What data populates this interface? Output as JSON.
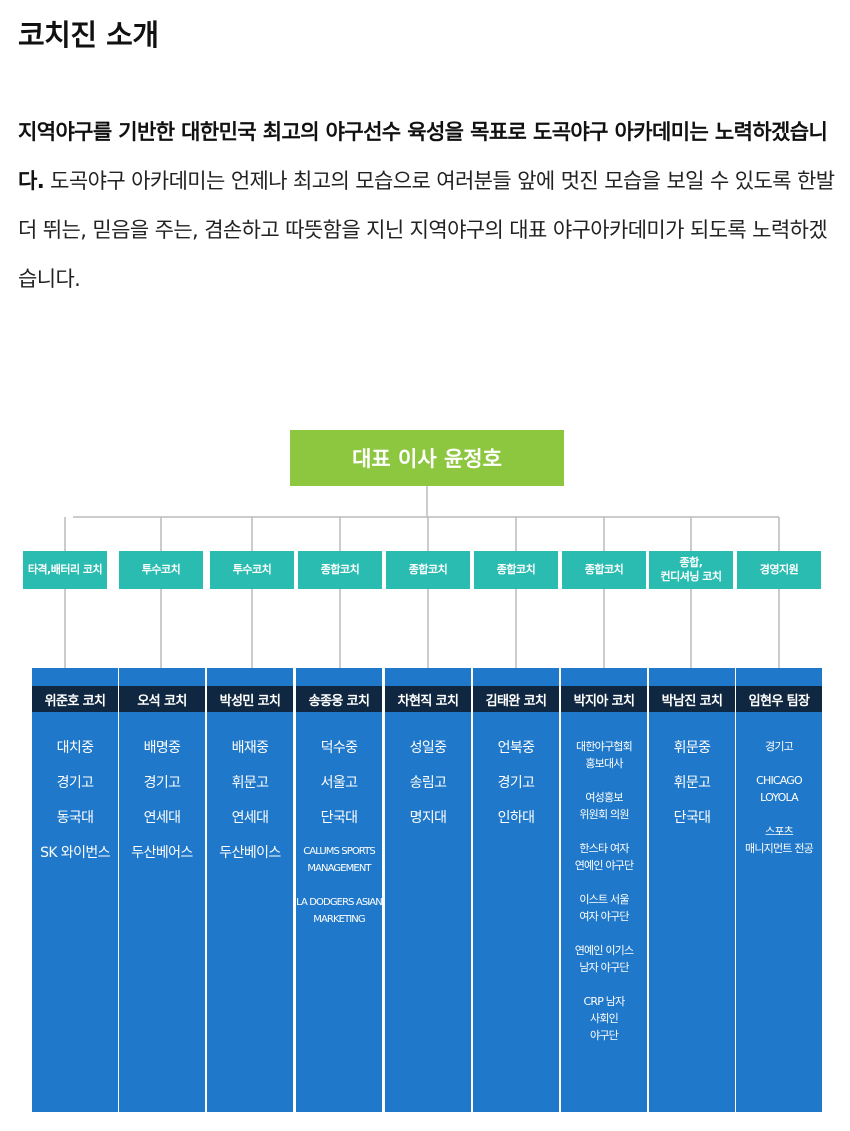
{
  "title": "코치진 소개",
  "intro": {
    "bold": "지역야구를 기반한 대한민국 최고의 야구선수 육성을 목표로 도곡야구 아카데미는 노력하겠습니다.",
    "text": " 도곡야구 아카데미는 언제나 최고의 모습으로 여러분들 앞에 멋진 모습을 보일 수 있도록 한발 더 뛰는, 믿음을 주는, 겸손하고 따뜻함을 지닌 지역야구의 대표 야구아카데미가 되도록 노력하겠습니다."
  },
  "org": {
    "ceo": "대표 이사 윤정호",
    "colors": {
      "ceo": "#8dc63f",
      "role": "#2bbcb1",
      "column": "#1f78c9",
      "header": "#0f2740",
      "line": "#bbbbbb"
    },
    "columns": [
      {
        "role": "타격,배터리 코치",
        "name": "위준호 코치",
        "items": [
          "대치중",
          "경기고",
          "동국대",
          "SK 와이번스"
        ]
      },
      {
        "role": "투수코치",
        "name": "오석 코치",
        "items": [
          "배명중",
          "경기고",
          "연세대",
          "두산베어스"
        ]
      },
      {
        "role": "투수코치",
        "name": "박성민 코치",
        "items": [
          "배재중",
          "휘문고",
          "연세대",
          "두산베이스"
        ]
      },
      {
        "role": "종합코치",
        "name": "송종웅 코치",
        "items": [
          "덕수중",
          "서울고",
          "단국대",
          "CALUMS SPORTS\nMANAGEMENT",
          "LA DODGERS ASIAN\nMARKETING"
        ]
      },
      {
        "role": "종합코치",
        "name": "차현직 코치",
        "items": [
          "성일중",
          "송림고",
          "명지대"
        ]
      },
      {
        "role": "종합코치",
        "name": "김태완 코치",
        "items": [
          "언북중",
          "경기고",
          "인하대"
        ]
      },
      {
        "role": "종합코치",
        "name": "박지아 코치",
        "items": [
          "대한야구협회\n홍보대사",
          "여성홍보\n위원회 의원",
          "한스타 여자\n연예인 야구단",
          "이스트 서울\n여자 야구단",
          "연예인 이기스\n남자 야구단",
          "CRP 남자\n사회인\n야구단"
        ]
      },
      {
        "role": "종합,\n컨디셔닝 코치",
        "name": "박남진 코치",
        "items": [
          "휘문중",
          "휘문고",
          "단국대"
        ]
      },
      {
        "role": "경영지원",
        "name": "임현우 팀장",
        "items": [
          "경기고",
          "CHICAGO\nLOYOLA",
          "스포츠\n매니지먼트 전공"
        ]
      }
    ]
  }
}
